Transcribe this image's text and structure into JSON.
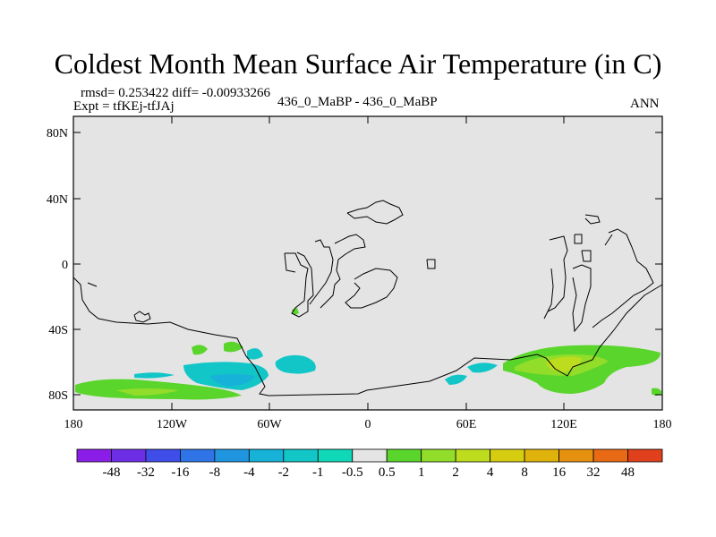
{
  "title": "Coldest Month Mean Surface Air Temperature (in C)",
  "stats": "rmsd= 0.253422 diff= -0.00933266",
  "expt": "Expt = tfKEj-tfJAj",
  "comparison": "436_0_MaBP - 436_0_MaBP",
  "period": "ANN",
  "lat_ticks": [
    "80N",
    "40N",
    "0",
    "40S",
    "80S"
  ],
  "lon_ticks": [
    "180",
    "120W",
    "60W",
    "0",
    "60E",
    "120E",
    "180"
  ],
  "colorbar": {
    "labels": [
      "-48",
      "-32",
      "-16",
      "-8",
      "-4",
      "-2",
      "-1",
      "-0.5",
      "0.5",
      "1",
      "2",
      "4",
      "8",
      "16",
      "32",
      "48"
    ],
    "colors": [
      "#8a1ee8",
      "#6d2fe6",
      "#3f4ee8",
      "#2e74e6",
      "#1f95e0",
      "#16b2d8",
      "#12c6c8",
      "#0fd8b8",
      "#e4e4e4",
      "#5ad52c",
      "#92dc2a",
      "#bedc1e",
      "#d6cc10",
      "#e0b20c",
      "#e69010",
      "#e86a14",
      "#e0401c"
    ]
  }
}
